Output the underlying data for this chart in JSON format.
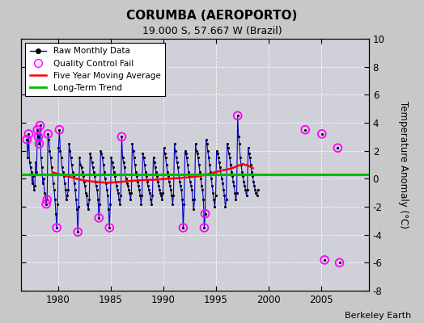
{
  "title": "CORUMBA (AEROPORTO)",
  "subtitle": "19.000 S, 57.667 W (Brazil)",
  "ylabel": "Temperature Anomaly (°C)",
  "credit": "Berkeley Earth",
  "ylim": [
    -8,
    10
  ],
  "yticks": [
    -8,
    -6,
    -4,
    -2,
    0,
    2,
    4,
    6,
    8,
    10
  ],
  "xlim": [
    1976.5,
    2009.5
  ],
  "xticks": [
    1980,
    1985,
    1990,
    1995,
    2000,
    2005
  ],
  "fig_bg": "#c8c8c8",
  "plot_bg": "#d0d0d8",
  "raw_line_color": "#0000cc",
  "raw_dot_color": "#000000",
  "qc_fail_color": "#ff00ff",
  "moving_avg_color": "#ff0000",
  "trend_color": "#00bb00",
  "raw_monthly_main": [
    [
      1977.042,
      2.8
    ],
    [
      1977.125,
      1.5
    ],
    [
      1977.208,
      3.2
    ],
    [
      1977.292,
      1.2
    ],
    [
      1977.375,
      0.8
    ],
    [
      1977.458,
      0.5
    ],
    [
      1977.542,
      -0.3
    ],
    [
      1977.625,
      0.2
    ],
    [
      1977.708,
      -0.8
    ],
    [
      1977.792,
      -0.5
    ],
    [
      1977.875,
      1.2
    ],
    [
      1977.958,
      0.5
    ],
    [
      1978.042,
      3.5
    ],
    [
      1978.125,
      3.0
    ],
    [
      1978.208,
      2.5
    ],
    [
      1978.292,
      3.8
    ],
    [
      1978.375,
      1.5
    ],
    [
      1978.458,
      0.8
    ],
    [
      1978.542,
      -0.3
    ],
    [
      1978.625,
      0.0
    ],
    [
      1978.708,
      -1.0
    ],
    [
      1978.792,
      -1.2
    ],
    [
      1978.875,
      -1.8
    ],
    [
      1978.958,
      -1.5
    ],
    [
      1979.042,
      3.2
    ],
    [
      1979.125,
      2.8
    ],
    [
      1979.208,
      2.0
    ],
    [
      1979.292,
      1.5
    ],
    [
      1979.375,
      0.8
    ],
    [
      1979.458,
      0.3
    ],
    [
      1979.542,
      -0.3
    ],
    [
      1979.625,
      -0.8
    ],
    [
      1979.708,
      -1.5
    ],
    [
      1979.792,
      -2.5
    ],
    [
      1979.875,
      -3.5
    ],
    [
      1979.958,
      -1.8
    ],
    [
      1980.042,
      2.2
    ],
    [
      1980.125,
      3.5
    ],
    [
      1980.208,
      2.0
    ],
    [
      1980.292,
      1.5
    ],
    [
      1980.375,
      0.8
    ],
    [
      1980.458,
      0.5
    ],
    [
      1980.542,
      0.2
    ],
    [
      1980.625,
      -0.3
    ],
    [
      1980.708,
      -0.8
    ],
    [
      1980.792,
      -1.5
    ],
    [
      1980.875,
      -1.2
    ],
    [
      1980.958,
      -0.8
    ],
    [
      1981.042,
      2.5
    ],
    [
      1981.125,
      2.0
    ],
    [
      1981.208,
      1.5
    ],
    [
      1981.292,
      1.0
    ],
    [
      1981.375,
      0.5
    ],
    [
      1981.458,
      0.2
    ],
    [
      1981.542,
      -0.3
    ],
    [
      1981.625,
      -0.8
    ],
    [
      1981.708,
      -1.5
    ],
    [
      1981.792,
      -2.2
    ],
    [
      1981.875,
      -3.8
    ],
    [
      1981.958,
      -2.0
    ],
    [
      1982.042,
      1.5
    ],
    [
      1982.125,
      1.0
    ],
    [
      1982.208,
      0.8
    ],
    [
      1982.292,
      0.5
    ],
    [
      1982.375,
      0.2
    ],
    [
      1982.458,
      -0.2
    ],
    [
      1982.542,
      -0.5
    ],
    [
      1982.625,
      -1.0
    ],
    [
      1982.708,
      -1.2
    ],
    [
      1982.792,
      -1.8
    ],
    [
      1982.875,
      -2.2
    ],
    [
      1982.958,
      -1.5
    ],
    [
      1983.042,
      1.8
    ],
    [
      1983.125,
      1.5
    ],
    [
      1983.208,
      1.2
    ],
    [
      1983.292,
      0.8
    ],
    [
      1983.375,
      0.5
    ],
    [
      1983.458,
      0.2
    ],
    [
      1983.542,
      -0.2
    ],
    [
      1983.625,
      -0.5
    ],
    [
      1983.708,
      -0.8
    ],
    [
      1983.792,
      -1.5
    ],
    [
      1983.875,
      -2.8
    ],
    [
      1983.958,
      -1.8
    ],
    [
      1984.042,
      2.0
    ],
    [
      1984.125,
      1.8
    ],
    [
      1984.208,
      1.5
    ],
    [
      1984.292,
      1.0
    ],
    [
      1984.375,
      0.5
    ],
    [
      1984.458,
      0.0
    ],
    [
      1984.542,
      -0.3
    ],
    [
      1984.625,
      -0.8
    ],
    [
      1984.708,
      -1.2
    ],
    [
      1984.792,
      -2.2
    ],
    [
      1984.875,
      -3.5
    ],
    [
      1984.958,
      -1.8
    ],
    [
      1985.042,
      1.5
    ],
    [
      1985.125,
      1.2
    ],
    [
      1985.208,
      0.8
    ],
    [
      1985.292,
      0.5
    ],
    [
      1985.375,
      0.2
    ],
    [
      1985.458,
      -0.2
    ],
    [
      1985.542,
      -0.5
    ],
    [
      1985.625,
      -0.8
    ],
    [
      1985.708,
      -1.0
    ],
    [
      1985.792,
      -1.5
    ],
    [
      1985.875,
      -1.8
    ],
    [
      1985.958,
      -1.2
    ],
    [
      1986.042,
      3.0
    ],
    [
      1986.125,
      1.5
    ],
    [
      1986.208,
      1.2
    ],
    [
      1986.292,
      0.8
    ],
    [
      1986.375,
      0.3
    ],
    [
      1986.458,
      0.0
    ],
    [
      1986.542,
      -0.3
    ],
    [
      1986.625,
      -0.5
    ],
    [
      1986.708,
      -0.8
    ],
    [
      1986.792,
      -1.0
    ],
    [
      1986.875,
      -1.5
    ],
    [
      1986.958,
      -1.0
    ],
    [
      1987.042,
      2.5
    ],
    [
      1987.125,
      2.0
    ],
    [
      1987.208,
      1.5
    ],
    [
      1987.292,
      1.0
    ],
    [
      1987.375,
      0.5
    ],
    [
      1987.458,
      0.2
    ],
    [
      1987.542,
      -0.2
    ],
    [
      1987.625,
      -0.5
    ],
    [
      1987.708,
      -0.8
    ],
    [
      1987.792,
      -1.2
    ],
    [
      1987.875,
      -1.8
    ],
    [
      1987.958,
      -1.2
    ],
    [
      1988.042,
      1.8
    ],
    [
      1988.125,
      1.5
    ],
    [
      1988.208,
      1.0
    ],
    [
      1988.292,
      0.5
    ],
    [
      1988.375,
      0.2
    ],
    [
      1988.458,
      -0.2
    ],
    [
      1988.542,
      -0.5
    ],
    [
      1988.625,
      -0.8
    ],
    [
      1988.708,
      -1.0
    ],
    [
      1988.792,
      -1.5
    ],
    [
      1988.875,
      -1.8
    ],
    [
      1988.958,
      -1.2
    ],
    [
      1989.042,
      1.5
    ],
    [
      1989.125,
      1.2
    ],
    [
      1989.208,
      0.8
    ],
    [
      1989.292,
      0.5
    ],
    [
      1989.375,
      0.2
    ],
    [
      1989.458,
      -0.2
    ],
    [
      1989.542,
      -0.5
    ],
    [
      1989.625,
      -0.8
    ],
    [
      1989.708,
      -1.0
    ],
    [
      1989.792,
      -1.2
    ],
    [
      1989.875,
      -1.5
    ],
    [
      1989.958,
      -1.0
    ],
    [
      1990.042,
      2.2
    ],
    [
      1990.125,
      1.8
    ],
    [
      1990.208,
      1.5
    ],
    [
      1990.292,
      1.0
    ],
    [
      1990.375,
      0.5
    ],
    [
      1990.458,
      0.2
    ],
    [
      1990.542,
      -0.2
    ],
    [
      1990.625,
      -0.5
    ],
    [
      1990.708,
      -0.8
    ],
    [
      1990.792,
      -1.2
    ],
    [
      1990.875,
      -1.8
    ],
    [
      1990.958,
      -1.2
    ],
    [
      1991.042,
      2.5
    ],
    [
      1991.125,
      2.0
    ],
    [
      1991.208,
      1.5
    ],
    [
      1991.292,
      1.2
    ],
    [
      1991.375,
      0.8
    ],
    [
      1991.458,
      0.3
    ],
    [
      1991.542,
      -0.2
    ],
    [
      1991.625,
      -0.5
    ],
    [
      1991.708,
      -0.8
    ],
    [
      1991.792,
      -1.5
    ],
    [
      1991.875,
      -3.5
    ],
    [
      1991.958,
      -1.8
    ],
    [
      1992.042,
      2.0
    ],
    [
      1992.125,
      1.8
    ],
    [
      1992.208,
      1.5
    ],
    [
      1992.292,
      1.0
    ],
    [
      1992.375,
      0.5
    ],
    [
      1992.458,
      0.2
    ],
    [
      1992.542,
      -0.2
    ],
    [
      1992.625,
      -0.5
    ],
    [
      1992.708,
      -0.8
    ],
    [
      1992.792,
      -1.5
    ],
    [
      1992.875,
      -2.2
    ],
    [
      1992.958,
      -1.5
    ],
    [
      1993.042,
      2.5
    ],
    [
      1993.125,
      2.0
    ],
    [
      1993.208,
      1.8
    ],
    [
      1993.292,
      1.5
    ],
    [
      1993.375,
      1.0
    ],
    [
      1993.458,
      0.5
    ],
    [
      1993.542,
      0.0
    ],
    [
      1993.625,
      -0.5
    ],
    [
      1993.708,
      -0.8
    ],
    [
      1993.792,
      -1.5
    ],
    [
      1993.875,
      -3.5
    ],
    [
      1993.958,
      -2.5
    ],
    [
      1994.042,
      2.8
    ],
    [
      1994.125,
      2.5
    ],
    [
      1994.208,
      2.0
    ],
    [
      1994.292,
      1.5
    ],
    [
      1994.375,
      1.0
    ],
    [
      1994.458,
      0.5
    ],
    [
      1994.542,
      0.0
    ],
    [
      1994.625,
      -0.5
    ],
    [
      1994.708,
      -1.0
    ],
    [
      1994.792,
      -1.5
    ],
    [
      1994.875,
      -2.0
    ],
    [
      1994.958,
      -1.2
    ],
    [
      1995.042,
      2.0
    ],
    [
      1995.125,
      1.8
    ],
    [
      1995.208,
      1.5
    ],
    [
      1995.292,
      1.2
    ],
    [
      1995.375,
      0.8
    ],
    [
      1995.458,
      0.3
    ],
    [
      1995.542,
      0.0
    ],
    [
      1995.625,
      -0.3
    ],
    [
      1995.708,
      -0.8
    ],
    [
      1995.792,
      -1.2
    ],
    [
      1995.875,
      -2.0
    ],
    [
      1995.958,
      -1.5
    ],
    [
      1996.042,
      2.5
    ],
    [
      1996.125,
      2.2
    ],
    [
      1996.208,
      1.8
    ],
    [
      1996.292,
      1.5
    ],
    [
      1996.375,
      1.0
    ],
    [
      1996.458,
      0.5
    ],
    [
      1996.542,
      0.2
    ],
    [
      1996.625,
      -0.2
    ],
    [
      1996.708,
      -0.5
    ],
    [
      1996.792,
      -1.0
    ],
    [
      1996.875,
      -1.5
    ],
    [
      1996.958,
      -1.0
    ],
    [
      1997.042,
      4.5
    ],
    [
      1997.125,
      3.0
    ],
    [
      1997.208,
      2.5
    ],
    [
      1997.292,
      1.5
    ],
    [
      1997.375,
      1.0
    ],
    [
      1997.458,
      0.5
    ],
    [
      1997.542,
      0.2
    ],
    [
      1997.625,
      -0.2
    ],
    [
      1997.708,
      -0.5
    ],
    [
      1997.792,
      -0.8
    ],
    [
      1997.875,
      -1.2
    ],
    [
      1997.958,
      -0.8
    ],
    [
      1998.042,
      2.2
    ],
    [
      1998.125,
      1.8
    ],
    [
      1998.208,
      1.5
    ],
    [
      1998.292,
      1.0
    ],
    [
      1998.375,
      0.5
    ],
    [
      1998.458,
      0.2
    ],
    [
      1998.542,
      -0.2
    ],
    [
      1998.625,
      -0.5
    ],
    [
      1998.708,
      -0.8
    ],
    [
      1998.792,
      -1.0
    ],
    [
      1998.875,
      -1.2
    ],
    [
      1998.958,
      -0.8
    ]
  ],
  "raw_isolated": [
    [
      2003.458,
      3.5
    ],
    [
      2005.042,
      3.2
    ],
    [
      2005.292,
      -5.8
    ],
    [
      2006.542,
      2.2
    ],
    [
      2006.708,
      -6.0
    ]
  ],
  "qc_fail_points": [
    [
      1977.042,
      2.8
    ],
    [
      1977.208,
      3.2
    ],
    [
      1978.042,
      3.5
    ],
    [
      1978.125,
      3.0
    ],
    [
      1978.208,
      2.5
    ],
    [
      1978.292,
      3.8
    ],
    [
      1978.875,
      -1.8
    ],
    [
      1978.958,
      -1.5
    ],
    [
      1979.042,
      3.2
    ],
    [
      1979.875,
      -3.5
    ],
    [
      1980.125,
      3.5
    ],
    [
      1981.875,
      -3.8
    ],
    [
      1983.875,
      -2.8
    ],
    [
      1984.875,
      -3.5
    ],
    [
      1986.042,
      3.0
    ],
    [
      1991.875,
      -3.5
    ],
    [
      1993.875,
      -3.5
    ],
    [
      1993.958,
      -2.5
    ],
    [
      1997.042,
      4.5
    ],
    [
      2003.458,
      3.5
    ],
    [
      2005.042,
      3.2
    ],
    [
      2005.292,
      -5.8
    ],
    [
      2006.542,
      2.2
    ],
    [
      2006.708,
      -6.0
    ]
  ],
  "moving_avg": [
    [
      1979.5,
      0.45
    ],
    [
      1980.0,
      0.35
    ],
    [
      1980.5,
      0.25
    ],
    [
      1981.0,
      0.15
    ],
    [
      1981.5,
      0.05
    ],
    [
      1982.0,
      -0.05
    ],
    [
      1982.5,
      -0.12
    ],
    [
      1983.0,
      -0.18
    ],
    [
      1983.5,
      -0.22
    ],
    [
      1984.0,
      -0.25
    ],
    [
      1984.5,
      -0.28
    ],
    [
      1985.0,
      -0.28
    ],
    [
      1985.5,
      -0.25
    ],
    [
      1986.0,
      -0.22
    ],
    [
      1986.5,
      -0.18
    ],
    [
      1987.0,
      -0.15
    ],
    [
      1987.5,
      -0.12
    ],
    [
      1988.0,
      -0.1
    ],
    [
      1988.5,
      -0.08
    ],
    [
      1989.0,
      -0.08
    ],
    [
      1989.5,
      -0.05
    ],
    [
      1990.0,
      -0.02
    ],
    [
      1990.5,
      0.0
    ],
    [
      1991.0,
      0.02
    ],
    [
      1991.5,
      0.05
    ],
    [
      1992.0,
      0.08
    ],
    [
      1992.5,
      0.1
    ],
    [
      1993.0,
      0.15
    ],
    [
      1993.5,
      0.2
    ],
    [
      1994.0,
      0.28
    ],
    [
      1994.5,
      0.38
    ],
    [
      1995.0,
      0.48
    ],
    [
      1995.5,
      0.58
    ],
    [
      1996.0,
      0.65
    ],
    [
      1996.5,
      0.75
    ],
    [
      1997.0,
      0.9
    ],
    [
      1997.5,
      1.05
    ],
    [
      1998.0,
      0.95
    ],
    [
      1998.5,
      0.75
    ]
  ],
  "long_term_trend_y": 0.3,
  "long_term_trend_x": [
    1976.5,
    2009.5
  ]
}
